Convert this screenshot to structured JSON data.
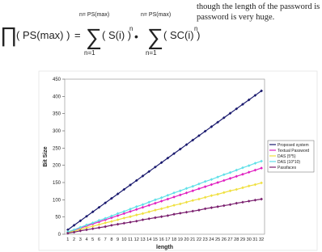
{
  "text": {
    "lines": [
      "though the length of the password is small,",
      "password is very huge."
    ]
  },
  "formula": {
    "product": "∏",
    "lhs": "( PS(max) )",
    "equals": "=",
    "sum_symbol": "∑",
    "dot": "•",
    "sums": [
      {
        "upper": "n= PS(max)",
        "lower": "n=1",
        "term": "( S(i) )",
        "power": "n"
      },
      {
        "upper": "n= PS(max)",
        "lower": "n=1",
        "term": "( SC(i) )",
        "power": "n"
      }
    ]
  },
  "chart_data": {
    "type": "line",
    "xlabel": "length",
    "ylabel": "Bit Size",
    "categories": [
      "1",
      "2",
      "3",
      "4",
      "5",
      "6",
      "7",
      "8",
      "9",
      "10",
      "11",
      "12",
      "13",
      "14",
      "15",
      "16",
      "17",
      "18",
      "19",
      "20",
      "21",
      "22",
      "23",
      "24",
      "25",
      "26",
      "27",
      "28",
      "29",
      "30",
      "31",
      "32"
    ],
    "ylim": [
      0,
      450
    ],
    "yticks": [
      0,
      50,
      100,
      150,
      200,
      250,
      300,
      350,
      400,
      450
    ],
    "grid": false,
    "legend": "right",
    "series": [
      {
        "name": "Proposed system",
        "color": "#1a1a6e",
        "values": [
          13,
          26,
          39,
          52,
          65,
          78,
          91,
          104,
          117,
          130,
          143,
          156,
          169,
          182,
          195,
          208,
          221,
          234,
          247,
          260,
          273,
          286,
          299,
          312,
          325,
          338,
          351,
          364,
          377,
          390,
          403,
          416
        ]
      },
      {
        "name": "Textual Password",
        "color": "#e020c0",
        "values": [
          6,
          12,
          18,
          24,
          30,
          36,
          42,
          48,
          54,
          60,
          66,
          72,
          78,
          84,
          90,
          96,
          102,
          108,
          114,
          120,
          126,
          132,
          138,
          144,
          150,
          156,
          162,
          168,
          174,
          180,
          186,
          192
        ]
      },
      {
        "name": "DAS (5*5)",
        "color": "#f0e040",
        "values": [
          5,
          9,
          14,
          19,
          23,
          28,
          33,
          37,
          42,
          47,
          51,
          56,
          60,
          65,
          70,
          74,
          79,
          84,
          88,
          93,
          98,
          102,
          107,
          112,
          116,
          121,
          126,
          130,
          135,
          140,
          144,
          149
        ]
      },
      {
        "name": "DAS (10*10)",
        "color": "#60e0e8",
        "values": [
          7,
          13,
          20,
          27,
          33,
          40,
          46,
          53,
          60,
          66,
          73,
          80,
          86,
          93,
          100,
          106,
          113,
          120,
          126,
          133,
          139,
          146,
          153,
          159,
          166,
          173,
          179,
          186,
          193,
          199,
          206,
          212
        ]
      },
      {
        "name": "Passfaces",
        "color": "#7a1f6e",
        "values": [
          3,
          6,
          10,
          13,
          16,
          19,
          22,
          26,
          29,
          32,
          35,
          38,
          42,
          45,
          48,
          51,
          54,
          58,
          61,
          64,
          67,
          70,
          74,
          77,
          80,
          83,
          86,
          90,
          93,
          96,
          99,
          102
        ]
      }
    ]
  }
}
